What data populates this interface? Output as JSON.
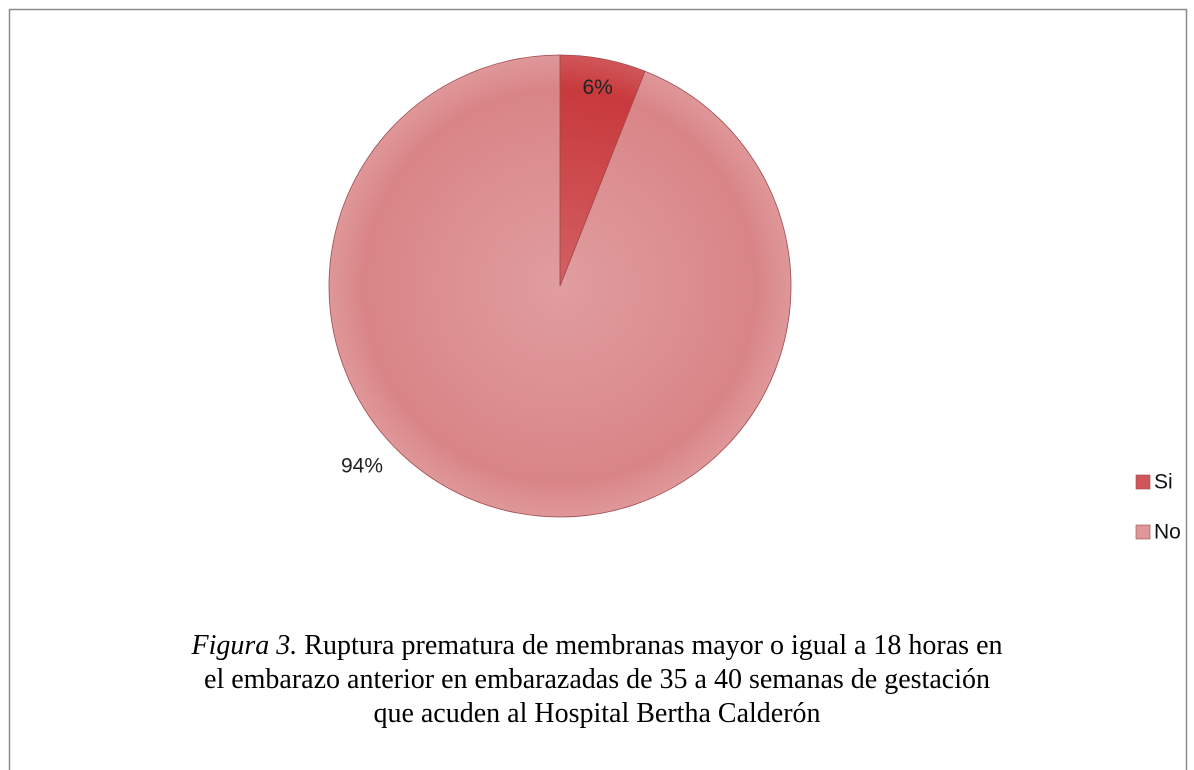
{
  "chart_data": {
    "type": "pie",
    "categories": [
      "Si",
      "No"
    ],
    "values": [
      6,
      94
    ],
    "value_labels": [
      "6%",
      "94%"
    ],
    "colors": [
      "#c8393c",
      "#d98587"
    ],
    "legend": "right",
    "caption": {
      "label": "Figura 3.",
      "lines": [
        "Ruptura prematura de membranas mayor o igual a 18 horas en",
        "el embarazo anterior en embarazadas de 35 a 40 semanas de gestación",
        "que acuden al Hospital Bertha Calderón"
      ]
    }
  }
}
